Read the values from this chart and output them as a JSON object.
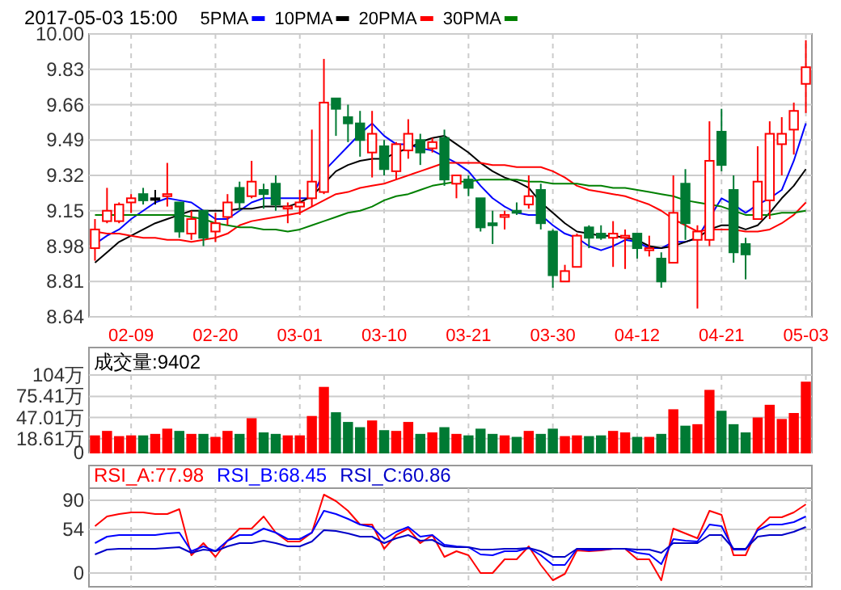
{
  "chart_data": [
    {
      "type": "candlestick",
      "title": "2017-05-03 15:00",
      "legend": "top",
      "grid": true,
      "tick_labels": "xy",
      "categories": [
        null,
        null,
        null,
        "02-09",
        null,
        null,
        null,
        null,
        null,
        null,
        "02-20",
        null,
        null,
        null,
        null,
        null,
        null,
        "03-01",
        null,
        null,
        null,
        null,
        null,
        null,
        "03-10",
        null,
        null,
        null,
        null,
        null,
        null,
        "03-21",
        null,
        null,
        null,
        null,
        null,
        null,
        "03-30",
        null,
        null,
        null,
        null,
        null,
        null,
        "04-12",
        null,
        null,
        null,
        null,
        null,
        null,
        "04-21",
        null,
        null,
        null,
        null,
        null,
        null,
        "05-03"
      ],
      "ohlc": [
        [
          8.97,
          9.11,
          8.91,
          9.06
        ],
        [
          9.1,
          9.26,
          9.09,
          9.15
        ],
        [
          9.1,
          9.19,
          9.09,
          9.18
        ],
        [
          9.19,
          9.23,
          9.14,
          9.21
        ],
        [
          9.23,
          9.26,
          9.18,
          9.2
        ],
        [
          9.21,
          9.25,
          9.18,
          9.21
        ],
        [
          9.22,
          9.38,
          9.17,
          9.23
        ],
        [
          9.19,
          9.19,
          9.02,
          9.05
        ],
        [
          9.04,
          9.15,
          9.01,
          9.11
        ],
        [
          9.15,
          9.15,
          8.98,
          9.02
        ],
        [
          9.05,
          9.14,
          9.0,
          9.09
        ],
        [
          9.12,
          9.23,
          9.08,
          9.19
        ],
        [
          9.26,
          9.29,
          9.15,
          9.19
        ],
        [
          9.22,
          9.39,
          9.21,
          9.29
        ],
        [
          9.25,
          9.28,
          9.16,
          9.23
        ],
        [
          9.28,
          9.32,
          9.15,
          9.18
        ],
        [
          9.16,
          9.19,
          9.09,
          9.17
        ],
        [
          9.17,
          9.25,
          9.13,
          9.19
        ],
        [
          9.21,
          9.54,
          9.17,
          9.29
        ],
        [
          9.24,
          9.88,
          9.23,
          9.67
        ],
        [
          9.69,
          9.69,
          9.51,
          9.64
        ],
        [
          9.6,
          9.66,
          9.48,
          9.57
        ],
        [
          9.57,
          9.63,
          9.41,
          9.49
        ],
        [
          9.43,
          9.63,
          9.31,
          9.52
        ],
        [
          9.46,
          9.49,
          9.32,
          9.35
        ],
        [
          9.34,
          9.48,
          9.3,
          9.47
        ],
        [
          9.44,
          9.59,
          9.4,
          9.52
        ],
        [
          9.49,
          9.52,
          9.37,
          9.43
        ],
        [
          9.45,
          9.5,
          9.43,
          9.48
        ],
        [
          9.5,
          9.54,
          9.27,
          9.3
        ],
        [
          9.28,
          9.32,
          9.21,
          9.32
        ],
        [
          9.3,
          9.32,
          9.22,
          9.26
        ],
        [
          9.21,
          9.21,
          9.05,
          9.07
        ],
        [
          9.09,
          9.15,
          8.99,
          9.08
        ],
        [
          9.12,
          9.15,
          9.06,
          9.13
        ],
        [
          9.15,
          9.19,
          9.13,
          9.14
        ],
        [
          9.18,
          9.32,
          9.16,
          9.22
        ],
        [
          9.25,
          9.28,
          9.06,
          9.09
        ],
        [
          9.05,
          9.06,
          8.78,
          8.84
        ],
        [
          8.81,
          8.89,
          8.81,
          8.86
        ],
        [
          8.88,
          9.04,
          8.88,
          9.03
        ],
        [
          9.07,
          9.08,
          8.97,
          9.02
        ],
        [
          9.04,
          9.08,
          9.01,
          9.02
        ],
        [
          9.02,
          9.1,
          8.88,
          9.04
        ],
        [
          9.02,
          9.06,
          8.87,
          9.03
        ],
        [
          9.04,
          9.04,
          8.92,
          8.97
        ],
        [
          8.96,
          9.03,
          8.93,
          8.97
        ],
        [
          8.92,
          8.95,
          8.78,
          8.81
        ],
        [
          8.9,
          9.32,
          8.9,
          9.14
        ],
        [
          9.28,
          9.35,
          9.01,
          9.09
        ],
        [
          9.01,
          9.08,
          8.68,
          9.05
        ],
        [
          9.01,
          9.58,
          8.98,
          9.39
        ],
        [
          9.53,
          9.64,
          9.34,
          9.37
        ],
        [
          9.25,
          9.32,
          8.9,
          8.95
        ],
        [
          8.99,
          9.02,
          8.82,
          8.94
        ],
        [
          9.11,
          9.46,
          9.11,
          9.29
        ],
        [
          9.2,
          9.58,
          9.11,
          9.52
        ],
        [
          9.47,
          9.6,
          9.32,
          9.52
        ],
        [
          9.54,
          9.67,
          9.42,
          9.63
        ],
        [
          9.76,
          9.97,
          9.62,
          9.84
        ]
      ],
      "colors": [
        "#ff0000",
        "#ff0000",
        "#ff0000",
        "#ff0000",
        "#007a33",
        "#000000",
        "#ff0000",
        "#007a33",
        "#ff0000",
        "#007a33",
        "#ff0000",
        "#ff0000",
        "#007a33",
        "#ff0000",
        "#007a33",
        "#007a33",
        "#ff0000",
        "#ff0000",
        "#ff0000",
        "#ff0000",
        "#007a33",
        "#007a33",
        "#007a33",
        "#ff0000",
        "#007a33",
        "#ff0000",
        "#ff0000",
        "#007a33",
        "#ff0000",
        "#007a33",
        "#ff0000",
        "#007a33",
        "#007a33",
        "#007a33",
        "#ff0000",
        "#007a33",
        "#ff0000",
        "#007a33",
        "#007a33",
        "#ff0000",
        "#ff0000",
        "#007a33",
        "#007a33",
        "#ff0000",
        "#ff0000",
        "#007a33",
        "#ff0000",
        "#007a33",
        "#ff0000",
        "#007a33",
        "#ff0000",
        "#ff0000",
        "#007a33",
        "#007a33",
        "#007a33",
        "#ff0000",
        "#ff0000",
        "#ff0000",
        "#ff0000",
        "#ff0000"
      ],
      "series": [
        {
          "name": "5PMA",
          "type": "line",
          "color": "#0000ff",
          "values": [
            8.99,
            9.03,
            9.06,
            9.11,
            9.15,
            9.19,
            9.21,
            9.2,
            9.19,
            9.15,
            9.11,
            9.11,
            9.15,
            9.19,
            9.21,
            9.21,
            9.21,
            9.21,
            9.21,
            9.34,
            9.4,
            9.46,
            9.52,
            9.57,
            9.51,
            9.47,
            9.47,
            9.45,
            9.44,
            9.41,
            9.38,
            9.34,
            9.27,
            9.21,
            9.17,
            9.14,
            9.13,
            9.13,
            9.08,
            9.04,
            9.02,
            8.98,
            8.96,
            8.98,
            9.01,
            9.0,
            8.97,
            8.97,
            9.0,
            9.0,
            9.02,
            null,
            9.21,
            9.18,
            9.14,
            9.18,
            9.21,
            9.25,
            9.39,
            9.57
          ]
        },
        {
          "name": "10PMA",
          "type": "line",
          "color": "#000000",
          "values": [
            8.9,
            8.95,
            9.0,
            9.03,
            9.06,
            9.09,
            9.11,
            9.13,
            9.15,
            9.15,
            9.15,
            9.15,
            9.16,
            9.16,
            9.17,
            9.17,
            9.17,
            9.19,
            9.22,
            9.28,
            9.34,
            9.37,
            9.39,
            9.4,
            9.4,
            9.43,
            9.45,
            9.48,
            9.5,
            9.51,
            9.47,
            9.43,
            9.38,
            9.34,
            9.31,
            9.29,
            9.26,
            9.19,
            9.14,
            9.09,
            9.05,
            9.04,
            9.03,
            9.03,
            9.02,
            9.01,
            8.98,
            8.97,
            8.98,
            9.0,
            9.02,
            9.06,
            9.08,
            9.08,
            9.06,
            9.08,
            9.14,
            9.21,
            9.27,
            9.35
          ]
        },
        {
          "name": "20PMA",
          "type": "line",
          "color": "#ff0000",
          "values": [
            9.05,
            9.04,
            9.04,
            9.03,
            9.02,
            9.02,
            9.01,
            9.01,
            9.0,
            9.01,
            9.02,
            9.04,
            9.08,
            9.1,
            9.11,
            9.12,
            9.13,
            9.14,
            9.17,
            9.2,
            9.23,
            9.24,
            9.26,
            9.27,
            9.28,
            9.3,
            9.32,
            9.34,
            9.36,
            9.38,
            9.38,
            9.38,
            9.38,
            9.37,
            9.37,
            9.36,
            9.36,
            9.36,
            9.34,
            9.31,
            9.27,
            9.25,
            9.24,
            9.23,
            9.22,
            9.2,
            9.18,
            9.15,
            9.11,
            9.08,
            9.05,
            9.06,
            9.06,
            9.06,
            9.05,
            9.05,
            9.06,
            9.09,
            9.13,
            9.19
          ]
        },
        {
          "name": "30PMA",
          "type": "line",
          "color": "#008000",
          "values": [
            9.13,
            9.13,
            9.13,
            9.13,
            9.13,
            9.13,
            9.13,
            9.13,
            9.12,
            9.11,
            9.09,
            9.08,
            9.07,
            9.07,
            9.06,
            9.06,
            9.05,
            9.06,
            9.08,
            9.1,
            9.12,
            9.14,
            9.15,
            9.17,
            9.2,
            9.22,
            9.23,
            9.25,
            9.27,
            9.28,
            9.29,
            9.29,
            9.3,
            9.3,
            9.3,
            9.3,
            9.29,
            9.29,
            9.28,
            9.28,
            9.28,
            9.27,
            9.27,
            9.26,
            9.26,
            9.25,
            9.24,
            9.23,
            9.22,
            9.2,
            9.19,
            9.18,
            9.17,
            9.15,
            9.13,
            9.13,
            9.13,
            9.14,
            9.14,
            9.15
          ]
        }
      ],
      "ylim": [
        8.64,
        10.0
      ],
      "yticks": [
        8.64,
        8.81,
        8.98,
        9.15,
        9.32,
        9.49,
        9.66,
        9.83,
        {
          "value": 10,
          "label": "10.00"
        }
      ]
    },
    {
      "type": "bar",
      "title": "成交量:9402",
      "grid": true,
      "tick_labels": "y",
      "categories": [
        null,
        null,
        null,
        null,
        null,
        null,
        null,
        null,
        null,
        null,
        null,
        null,
        null,
        null,
        null,
        null,
        null,
        null,
        null,
        null,
        null,
        null,
        null,
        null,
        null,
        null,
        null,
        null,
        null,
        null,
        null,
        null,
        null,
        null,
        null,
        null,
        null,
        null,
        null,
        null,
        null,
        null,
        null,
        null,
        null,
        null,
        null,
        null,
        null,
        null,
        null,
        null,
        null,
        null,
        null,
        null,
        null,
        null,
        null,
        null
      ],
      "values": [
        22,
        28,
        21,
        22,
        22,
        24,
        31,
        28,
        24,
        24,
        20,
        28,
        24,
        45,
        26,
        24,
        22,
        22,
        48,
        87,
        53,
        40,
        33,
        42,
        29,
        28,
        40,
        24,
        26,
        33,
        24,
        22,
        31,
        24,
        22,
        20,
        28,
        24,
        31,
        21,
        22,
        21,
        22,
        28,
        26,
        20,
        20,
        24,
        57,
        35,
        37,
        83,
        55,
        37,
        26,
        46,
        63,
        44,
        52,
        94
      ],
      "colors": [
        "#ff0000",
        "#ff0000",
        "#ff0000",
        "#ff0000",
        "#007a33",
        "#ff0000",
        "#ff0000",
        "#007a33",
        "#ff0000",
        "#007a33",
        "#ff0000",
        "#ff0000",
        "#007a33",
        "#ff0000",
        "#007a33",
        "#007a33",
        "#ff0000",
        "#ff0000",
        "#ff0000",
        "#ff0000",
        "#007a33",
        "#007a33",
        "#007a33",
        "#ff0000",
        "#007a33",
        "#ff0000",
        "#ff0000",
        "#007a33",
        "#ff0000",
        "#007a33",
        "#ff0000",
        "#007a33",
        "#007a33",
        "#007a33",
        "#ff0000",
        "#007a33",
        "#ff0000",
        "#007a33",
        "#007a33",
        "#ff0000",
        "#ff0000",
        "#007a33",
        "#007a33",
        "#ff0000",
        "#ff0000",
        "#007a33",
        "#ff0000",
        "#007a33",
        "#ff0000",
        "#007a33",
        "#ff0000",
        "#ff0000",
        "#007a33",
        "#007a33",
        "#007a33",
        "#ff0000",
        "#ff0000",
        "#ff0000",
        "#ff0000",
        "#ff0000"
      ],
      "ylim": [
        0,
        104
      ],
      "yticks": [
        0,
        {
          "value": 18.61,
          "label": "18.61万"
        },
        {
          "value": 47.01,
          "label": "47.01万"
        },
        {
          "value": 75.41,
          "label": "75.41万"
        },
        {
          "value": 104,
          "label": "104万"
        }
      ]
    },
    {
      "type": "line",
      "legend": "top",
      "grid": true,
      "tick_labels": "y",
      "categories": [
        null,
        null,
        null,
        null,
        null,
        null,
        null,
        null,
        null,
        null,
        null,
        null,
        null,
        null,
        null,
        null,
        null,
        null,
        null,
        null,
        null,
        null,
        null,
        null,
        null,
        null,
        null,
        null,
        null,
        null,
        null,
        null,
        null,
        null,
        null,
        null,
        null,
        null,
        null,
        null,
        null,
        null,
        null,
        null,
        null,
        null,
        null,
        null,
        null,
        null,
        null,
        null,
        null,
        null,
        null,
        null,
        null,
        null,
        null,
        null
      ],
      "series": [
        {
          "name": "RSI_A:77.98",
          "color": "#ff0000",
          "values": [
            58,
            70,
            73,
            75,
            75,
            73,
            73,
            79,
            22,
            37,
            20,
            40,
            55,
            55,
            70,
            50,
            39,
            39,
            50,
            97,
            89,
            77,
            60,
            60,
            30,
            47,
            55,
            37,
            47,
            20,
            27,
            22,
            0,
            0,
            17,
            17,
            33,
            10,
            -9,
            -1,
            28,
            27,
            28,
            30,
            30,
            17,
            17,
            -9,
            55,
            49,
            43,
            77,
            72,
            22,
            22,
            55,
            69,
            69,
            75,
            85
          ]
        },
        {
          "name": "RSI_B:68.45",
          "color": "#0000ff",
          "values": [
            37,
            45,
            47,
            47,
            47,
            47,
            49,
            50,
            27,
            33,
            27,
            40,
            47,
            47,
            55,
            50,
            42,
            42,
            50,
            77,
            73,
            67,
            60,
            57,
            42,
            51,
            57,
            45,
            47,
            35,
            33,
            32,
            23,
            22,
            27,
            27,
            31,
            22,
            10,
            10,
            30,
            28,
            29,
            30,
            30,
            25,
            23,
            11,
            42,
            40,
            39,
            60,
            58,
            29,
            29,
            53,
            60,
            60,
            63,
            70
          ]
        },
        {
          "name": "RSI_C:60.86",
          "color": "#0000c8",
          "values": [
            23,
            29,
            30,
            30,
            30,
            30,
            31,
            32,
            25,
            29,
            27,
            33,
            37,
            37,
            40,
            37,
            33,
            33,
            39,
            53,
            52,
            49,
            45,
            45,
            37,
            43,
            47,
            40,
            41,
            33,
            32,
            32,
            29,
            29,
            30,
            30,
            31,
            27,
            20,
            20,
            30,
            30,
            30,
            30,
            30,
            29,
            29,
            25,
            37,
            37,
            37,
            47,
            47,
            30,
            30,
            45,
            47,
            47,
            51,
            57
          ]
        }
      ],
      "ylim": [
        -17,
        105
      ],
      "yticks": [
        0,
        54,
        90
      ]
    }
  ]
}
